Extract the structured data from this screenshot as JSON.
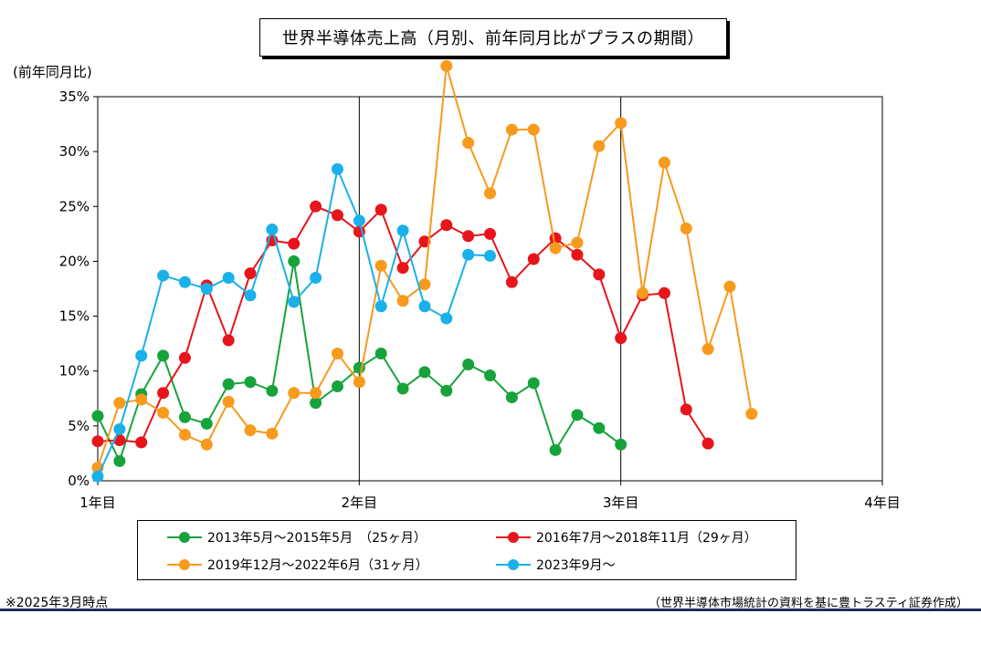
{
  "title": "世界半導体売上高（月別、前年同月比がプラスの期間）",
  "y_axis_unit": "(前年同月比)",
  "footnote": "※2025年3月時点",
  "source": "（世界半導体市場統計の資料を基に豊トラスティ証券作成）",
  "legend": [
    {
      "label": "2013年5月～2015年5月　（25ヶ月）",
      "color": "#17a33b"
    },
    {
      "label": "2016年7月～2018年11月（29ヶ月）",
      "color": "#e8141b"
    },
    {
      "label": "2019年12月～2022年6月（31ヶ月）",
      "color": "#f79a1d"
    },
    {
      "label": "2023年9月～",
      "color": "#1ab0ea"
    }
  ],
  "chart_data": {
    "type": "line",
    "title": "世界半導体売上高（月別、前年同月比がプラスの期間）",
    "ylabel": "(前年同月比)",
    "xlabel": "",
    "xlim": [
      1,
      4
    ],
    "ylim": [
      0,
      35
    ],
    "x_ticks": [
      {
        "value": 1,
        "label": "1年目"
      },
      {
        "value": 2,
        "label": "2年目"
      },
      {
        "value": 3,
        "label": "3年目"
      },
      {
        "value": 4,
        "label": "4年目"
      }
    ],
    "y_ticks": [
      {
        "value": 0,
        "label": "0%"
      },
      {
        "value": 5,
        "label": "5%"
      },
      {
        "value": 10,
        "label": "10%"
      },
      {
        "value": 15,
        "label": "15%"
      },
      {
        "value": 20,
        "label": "20%"
      },
      {
        "value": 25,
        "label": "25%"
      },
      {
        "value": 30,
        "label": "30%"
      },
      {
        "value": 35,
        "label": "35%"
      }
    ],
    "vertical_lines_at": [
      2,
      3
    ],
    "grid": false,
    "legend_position": "bottom",
    "series": [
      {
        "name": "2013年5月～2015年5月　（25ヶ月）",
        "color": "#17a33b",
        "values": [
          5.9,
          1.8,
          7.9,
          11.4,
          5.8,
          5.2,
          8.8,
          9.0,
          8.2,
          20.0,
          7.1,
          8.6,
          10.3,
          11.6,
          8.4,
          9.9,
          8.2,
          10.6,
          9.6,
          7.6,
          8.9,
          2.8,
          6.0,
          4.8,
          3.3
        ]
      },
      {
        "name": "2016年7月～2018年11月（29ヶ月）",
        "color": "#e8141b",
        "values": [
          3.6,
          3.7,
          3.5,
          8.0,
          11.2,
          17.8,
          12.8,
          18.9,
          21.9,
          21.6,
          25.0,
          24.2,
          22.7,
          24.7,
          19.4,
          21.8,
          23.3,
          22.3,
          22.5,
          18.1,
          20.2,
          22.1,
          20.6,
          18.8,
          13.0,
          16.9,
          17.1,
          6.5,
          3.4
        ]
      },
      {
        "name": "2019年12月～2022年6月（31ヶ月）",
        "color": "#f79a1d",
        "values": [
          1.2,
          7.1,
          7.4,
          6.2,
          4.2,
          3.3,
          7.2,
          4.6,
          4.3,
          8.0,
          8.0,
          11.6,
          9.0,
          19.6,
          16.4,
          17.9,
          37.8,
          30.8,
          26.2,
          32.0,
          32.0,
          21.2,
          21.7,
          30.5,
          32.6,
          17.1,
          29.0,
          23.0,
          12.0,
          17.7,
          6.1
        ]
      },
      {
        "name": "2023年9月～",
        "color": "#1ab0ea",
        "values": [
          0.4,
          4.7,
          11.4,
          18.7,
          18.1,
          17.5,
          18.5,
          16.9,
          22.9,
          16.3,
          18.5,
          28.4,
          23.7,
          15.9,
          22.8,
          15.9,
          14.8,
          20.6,
          20.5
        ]
      }
    ]
  }
}
